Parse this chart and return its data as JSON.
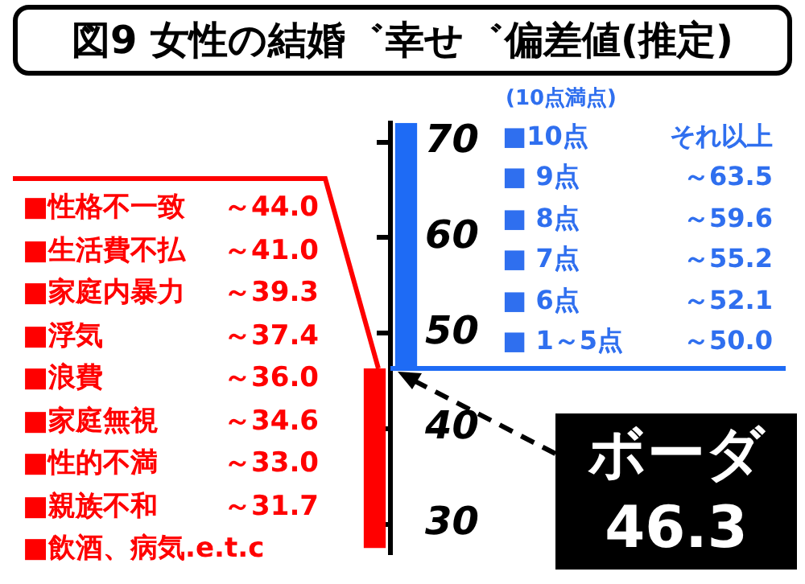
{
  "chart_data": {
    "type": "bar",
    "title": "図9 女性の結婚゛幸せ゛偏差値(推定)",
    "categories": [
      null,
      null
    ],
    "base": [
      27.5,
      46.3
    ],
    "values": [
      18.8,
      25.7
    ],
    "colors": [
      "#ff0000",
      "#1e6bf5"
    ],
    "ylim": [
      27,
      72
    ],
    "yticks": [
      30,
      40,
      50,
      60,
      70
    ],
    "grid": false,
    "ref_lines": [
      {
        "axis": "y",
        "value": 46.3,
        "label": "ボーダ\n46.3",
        "color": "#1e6bf5"
      }
    ],
    "annotations": [
      "(10点満点)",
      "■10点\tそれ以上",
      "■ 9点\t～63.5",
      "■ 8点\t～59.6",
      "■ 7点\t～55.2",
      "■ 6点\t～52.1",
      "■ 1～5点\t～50.0",
      "■性格不一致\t～44.0",
      "■生活費不払\t～41.0",
      "■家庭内暴力\t～39.3",
      "■浮気\t～37.4",
      "■浪費\t～36.0",
      "■家庭無視\t～34.6",
      "■性的不満\t～33.0",
      "■親族不和\t～31.7",
      "■飲酒、病気.e.t.c"
    ]
  }
}
